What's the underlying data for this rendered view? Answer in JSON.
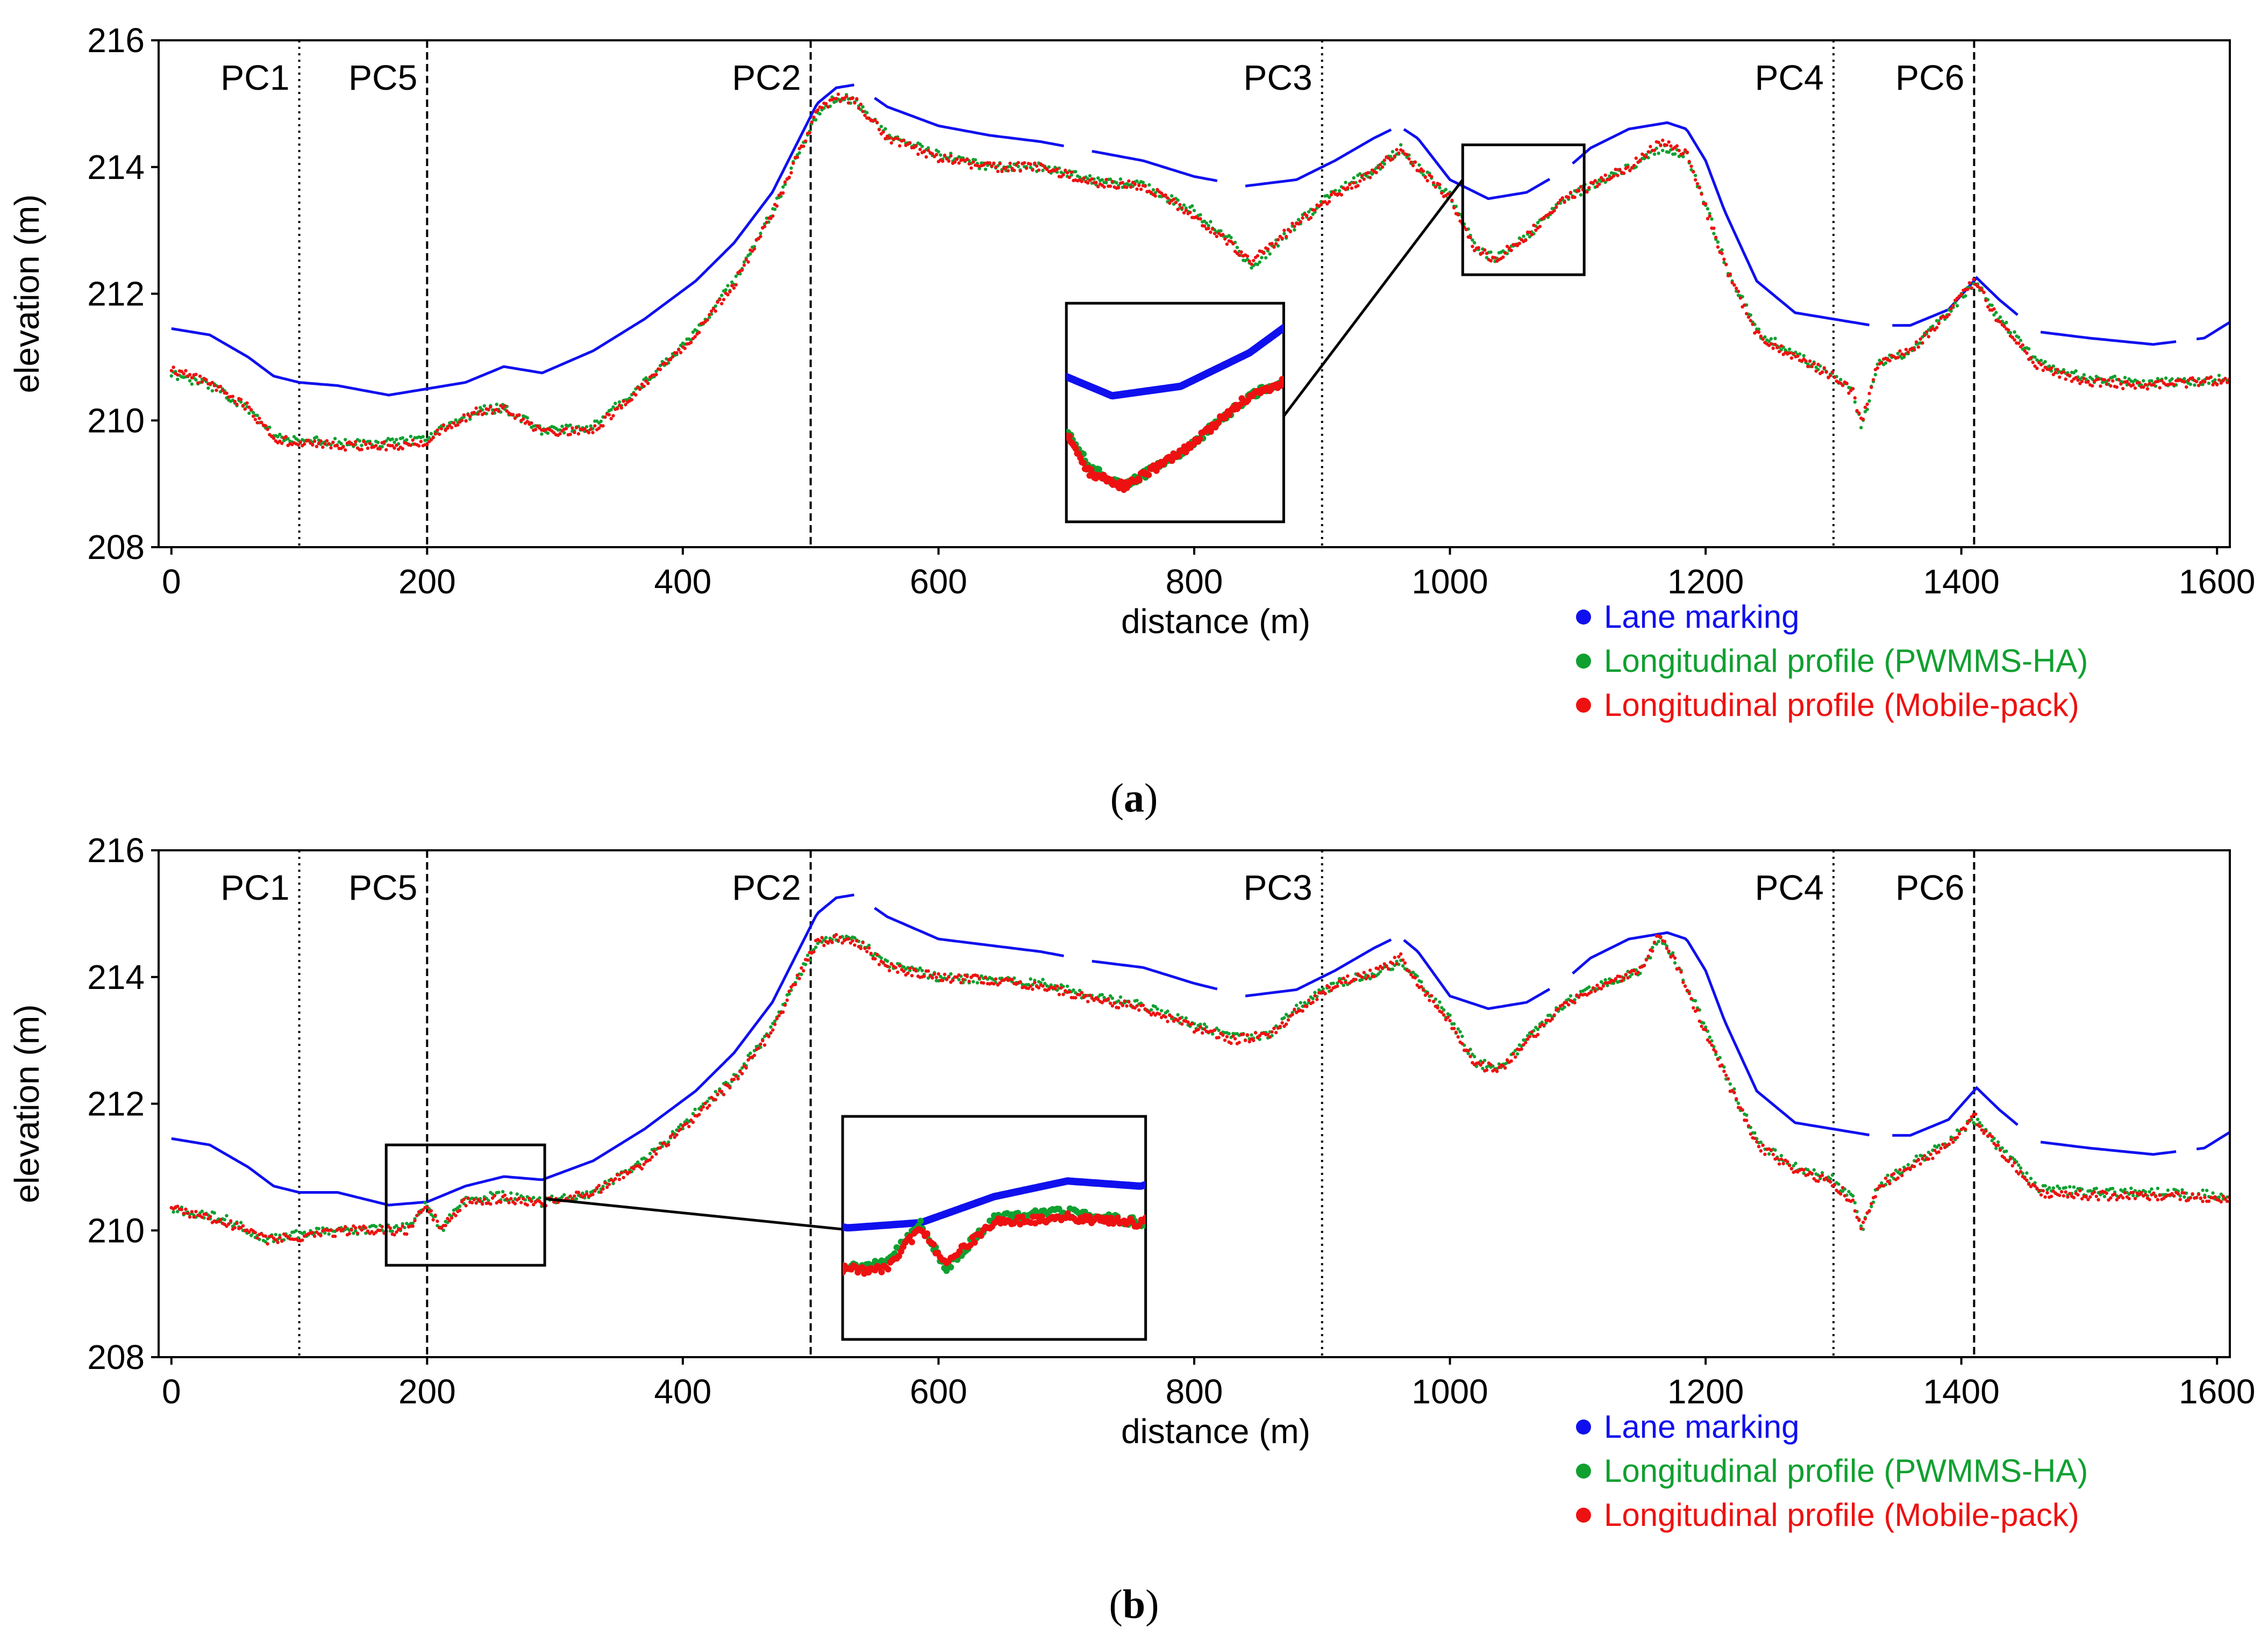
{
  "figure": {
    "captions": [
      "(a)",
      "(b)"
    ]
  },
  "colors": {
    "lane": "#1010ee",
    "pwmms": "#10a030",
    "mobile": "#ee1111",
    "axis": "#000000"
  },
  "legend_labels": {
    "lane": "Lane marking",
    "pwmms": "Longitudinal profile (PWMMS-HA)",
    "mobile": "Longitudinal profile (Mobile-pack)"
  },
  "chart_data": [
    {
      "id": "a",
      "type": "line",
      "caption_letter": "a",
      "caption_open": "(",
      "caption_close": ")",
      "xlabel": "distance (m)",
      "ylabel": "elevation (m)",
      "xlim": [
        -10,
        1610
      ],
      "ylim": [
        208,
        216
      ],
      "xticks": [
        0,
        200,
        400,
        600,
        800,
        1000,
        1200,
        1400,
        1600
      ],
      "yticks": [
        208,
        210,
        212,
        214,
        216
      ],
      "grid": false,
      "legend_position": "bottom-right, below axes",
      "control_points": [
        {
          "label": "PC1",
          "x": 100,
          "style": "dotted"
        },
        {
          "label": "PC5",
          "x": 200,
          "style": "dashed"
        },
        {
          "label": "PC2",
          "x": 500,
          "style": "dashed"
        },
        {
          "label": "PC3",
          "x": 900,
          "style": "dotted"
        },
        {
          "label": "PC4",
          "x": 1300,
          "style": "dotted"
        },
        {
          "label": "PC6",
          "x": 1410,
          "style": "dashed"
        }
      ],
      "zoom_box": {
        "x0": 1010,
        "x1": 1105,
        "y0": 212.3,
        "y1": 214.35
      },
      "inset_anchor": {
        "x0": 700,
        "x1": 870,
        "y0": 208.4,
        "y1": 211.85
      },
      "series": [
        {
          "name": "Lane marking",
          "color_key": "lane",
          "x": [
            0,
            30,
            60,
            80,
            100,
            130,
            170,
            200,
            230,
            260,
            290,
            330,
            370,
            410,
            440,
            470,
            490,
            505,
            520,
            535,
            560,
            600,
            640,
            680,
            720,
            760,
            800,
            840,
            880,
            910,
            940,
            960,
            975,
            1000,
            1030,
            1060,
            1090,
            1110,
            1140,
            1170,
            1185,
            1200,
            1215,
            1240,
            1270,
            1300,
            1330,
            1360,
            1390,
            1412,
            1430,
            1460,
            1500,
            1550,
            1590,
            1610
          ],
          "y": [
            211.45,
            211.35,
            211.0,
            210.7,
            210.6,
            210.55,
            210.4,
            210.5,
            210.6,
            210.85,
            210.75,
            211.1,
            211.6,
            212.2,
            212.8,
            213.6,
            214.4,
            215.0,
            215.25,
            215.3,
            214.95,
            214.65,
            214.5,
            214.4,
            214.25,
            214.1,
            213.85,
            213.7,
            213.8,
            214.1,
            214.45,
            214.65,
            214.45,
            213.8,
            213.5,
            213.6,
            213.95,
            214.3,
            214.6,
            214.7,
            214.6,
            214.1,
            213.3,
            212.2,
            211.7,
            211.6,
            211.5,
            211.5,
            211.75,
            212.25,
            211.9,
            211.4,
            211.3,
            211.2,
            211.3,
            211.55
          ]
        },
        {
          "name": "Longitudinal profile (PWMMS-HA)",
          "color_key": "pwmms",
          "x": [
            0,
            30,
            60,
            80,
            100,
            130,
            170,
            200,
            215,
            240,
            260,
            290,
            330,
            370,
            410,
            440,
            470,
            490,
            505,
            520,
            535,
            560,
            600,
            640,
            680,
            720,
            760,
            800,
            830,
            845,
            880,
            910,
            940,
            962,
            975,
            1000,
            1020,
            1035,
            1060,
            1090,
            1110,
            1140,
            1165,
            1185,
            1200,
            1215,
            1240,
            1270,
            1300,
            1315,
            1322,
            1335,
            1360,
            1390,
            1410,
            1430,
            1460,
            1500,
            1550,
            1610
          ],
          "y": [
            210.75,
            210.55,
            210.2,
            209.75,
            209.7,
            209.65,
            209.65,
            209.7,
            209.9,
            210.15,
            210.2,
            209.85,
            209.9,
            210.6,
            211.4,
            212.2,
            213.3,
            214.2,
            214.85,
            215.1,
            215.05,
            214.5,
            214.2,
            214.0,
            214.0,
            213.8,
            213.7,
            213.3,
            212.8,
            212.4,
            213.1,
            213.6,
            213.95,
            214.3,
            214.0,
            213.55,
            212.75,
            212.55,
            212.9,
            213.5,
            213.7,
            214.0,
            214.3,
            214.2,
            213.4,
            212.5,
            211.4,
            211.05,
            210.7,
            210.5,
            209.9,
            210.9,
            211.1,
            211.7,
            212.2,
            211.6,
            210.9,
            210.65,
            210.6,
            210.65
          ]
        },
        {
          "name": "Longitudinal profile (Mobile-pack)",
          "color_key": "mobile",
          "x": [
            0,
            30,
            60,
            80,
            100,
            130,
            170,
            200,
            215,
            240,
            260,
            290,
            330,
            370,
            410,
            440,
            470,
            490,
            505,
            520,
            535,
            560,
            600,
            640,
            680,
            720,
            760,
            800,
            830,
            845,
            880,
            910,
            940,
            962,
            975,
            1000,
            1020,
            1035,
            1060,
            1090,
            1110,
            1140,
            1165,
            1185,
            1200,
            1215,
            1240,
            1270,
            1300,
            1315,
            1322,
            1335,
            1360,
            1390,
            1410,
            1430,
            1460,
            1500,
            1550,
            1610
          ],
          "y": [
            210.8,
            210.6,
            210.2,
            209.7,
            209.65,
            209.6,
            209.6,
            209.65,
            209.9,
            210.15,
            210.2,
            209.8,
            209.85,
            210.55,
            211.35,
            212.15,
            213.25,
            214.2,
            214.85,
            215.1,
            215.05,
            214.45,
            214.15,
            214.0,
            214.0,
            213.75,
            213.7,
            213.25,
            212.75,
            212.5,
            213.1,
            213.55,
            213.9,
            214.3,
            214.0,
            213.5,
            212.7,
            212.55,
            212.9,
            213.5,
            213.7,
            214.0,
            214.4,
            214.2,
            213.35,
            212.45,
            211.35,
            211.0,
            210.7,
            210.45,
            209.95,
            210.9,
            211.1,
            211.7,
            212.2,
            211.55,
            210.85,
            210.6,
            210.55,
            210.65
          ]
        }
      ]
    },
    {
      "id": "b",
      "type": "line",
      "caption_letter": "b",
      "caption_open": "(",
      "caption_close": ")",
      "xlabel": "distance (m)",
      "ylabel": "elevation (m)",
      "xlim": [
        -10,
        1610
      ],
      "ylim": [
        208,
        216
      ],
      "xticks": [
        0,
        200,
        400,
        600,
        800,
        1000,
        1200,
        1400,
        1600
      ],
      "yticks": [
        208,
        210,
        212,
        214,
        216
      ],
      "grid": false,
      "legend_position": "bottom-right, below axes",
      "control_points": [
        {
          "label": "PC1",
          "x": 100,
          "style": "dotted"
        },
        {
          "label": "PC5",
          "x": 200,
          "style": "dashed"
        },
        {
          "label": "PC2",
          "x": 500,
          "style": "dashed"
        },
        {
          "label": "PC3",
          "x": 900,
          "style": "dotted"
        },
        {
          "label": "PC4",
          "x": 1300,
          "style": "dotted"
        },
        {
          "label": "PC6",
          "x": 1410,
          "style": "dashed"
        }
      ],
      "zoom_box": {
        "x0": 168,
        "x1": 292,
        "y0": 209.45,
        "y1": 211.35
      },
      "inset_anchor": {
        "x0": 525,
        "x1": 762,
        "y0": 208.28,
        "y1": 211.8
      },
      "series": [
        {
          "name": "Lane marking",
          "color_key": "lane",
          "x": [
            0,
            30,
            60,
            80,
            100,
            130,
            170,
            200,
            230,
            260,
            290,
            330,
            370,
            410,
            440,
            470,
            490,
            505,
            520,
            535,
            560,
            600,
            640,
            680,
            720,
            760,
            800,
            840,
            880,
            910,
            940,
            960,
            975,
            1000,
            1030,
            1060,
            1090,
            1110,
            1140,
            1170,
            1185,
            1200,
            1215,
            1240,
            1270,
            1300,
            1330,
            1360,
            1390,
            1412,
            1430,
            1460,
            1500,
            1550,
            1590,
            1610
          ],
          "y": [
            211.45,
            211.35,
            211.0,
            210.7,
            210.6,
            210.6,
            210.4,
            210.45,
            210.7,
            210.85,
            210.8,
            211.1,
            211.6,
            212.2,
            212.8,
            213.6,
            214.4,
            215.0,
            215.25,
            215.3,
            214.95,
            214.6,
            214.5,
            214.4,
            214.25,
            214.15,
            213.9,
            213.7,
            213.8,
            214.1,
            214.45,
            214.65,
            214.4,
            213.7,
            213.5,
            213.6,
            213.95,
            214.3,
            214.6,
            214.7,
            214.6,
            214.1,
            213.3,
            212.2,
            211.7,
            211.6,
            211.5,
            211.5,
            211.75,
            212.25,
            211.9,
            211.4,
            211.3,
            211.2,
            211.3,
            211.55
          ]
        },
        {
          "name": "Longitudinal profile (PWMMS-HA)",
          "color_key": "pwmms",
          "x": [
            0,
            40,
            75,
            100,
            140,
            185,
            200,
            210,
            230,
            260,
            290,
            330,
            370,
            410,
            440,
            470,
            490,
            505,
            520,
            540,
            560,
            600,
            640,
            680,
            720,
            760,
            800,
            830,
            860,
            880,
            910,
            940,
            962,
            975,
            1000,
            1020,
            1040,
            1060,
            1090,
            1120,
            1150,
            1163,
            1175,
            1190,
            1215,
            1240,
            1270,
            1300,
            1315,
            1322,
            1335,
            1360,
            1390,
            1410,
            1430,
            1460,
            1500,
            1550,
            1610
          ],
          "y": [
            210.35,
            210.2,
            209.85,
            209.95,
            210.0,
            210.05,
            210.45,
            210.0,
            210.5,
            210.55,
            210.45,
            210.6,
            211.1,
            211.85,
            212.4,
            213.2,
            214.0,
            214.55,
            214.6,
            214.55,
            214.2,
            214.0,
            213.95,
            213.9,
            213.7,
            213.55,
            213.25,
            213.05,
            213.1,
            213.5,
            213.9,
            214.05,
            214.25,
            213.95,
            213.35,
            212.65,
            212.55,
            213.0,
            213.6,
            213.9,
            214.1,
            214.6,
            214.3,
            213.65,
            212.5,
            211.4,
            211.0,
            210.8,
            210.5,
            210.0,
            210.7,
            211.05,
            211.4,
            211.75,
            211.3,
            210.65,
            210.6,
            210.6,
            210.55
          ]
        },
        {
          "name": "Longitudinal profile (Mobile-pack)",
          "color_key": "mobile",
          "x": [
            0,
            40,
            75,
            100,
            140,
            185,
            200,
            210,
            230,
            260,
            290,
            330,
            370,
            410,
            440,
            470,
            490,
            505,
            520,
            540,
            560,
            600,
            640,
            680,
            720,
            760,
            800,
            830,
            860,
            880,
            910,
            940,
            962,
            975,
            1000,
            1020,
            1040,
            1060,
            1090,
            1120,
            1150,
            1163,
            1175,
            1190,
            1215,
            1240,
            1270,
            1300,
            1315,
            1322,
            1335,
            1360,
            1390,
            1410,
            1430,
            1460,
            1500,
            1550,
            1610
          ],
          "y": [
            210.35,
            210.15,
            209.85,
            209.9,
            210.0,
            210.0,
            210.4,
            210.05,
            210.45,
            210.5,
            210.45,
            210.6,
            211.05,
            211.8,
            212.35,
            213.15,
            214.0,
            214.55,
            214.6,
            214.5,
            214.15,
            214.0,
            213.95,
            213.85,
            213.65,
            213.5,
            213.2,
            213.0,
            213.1,
            213.45,
            213.9,
            214.05,
            214.3,
            213.9,
            213.3,
            212.6,
            212.55,
            213.0,
            213.55,
            213.9,
            214.1,
            214.65,
            214.3,
            213.6,
            212.45,
            211.35,
            210.95,
            210.75,
            210.45,
            210.0,
            210.7,
            211.0,
            211.35,
            211.8,
            211.25,
            210.6,
            210.55,
            210.55,
            210.5
          ]
        }
      ]
    }
  ]
}
